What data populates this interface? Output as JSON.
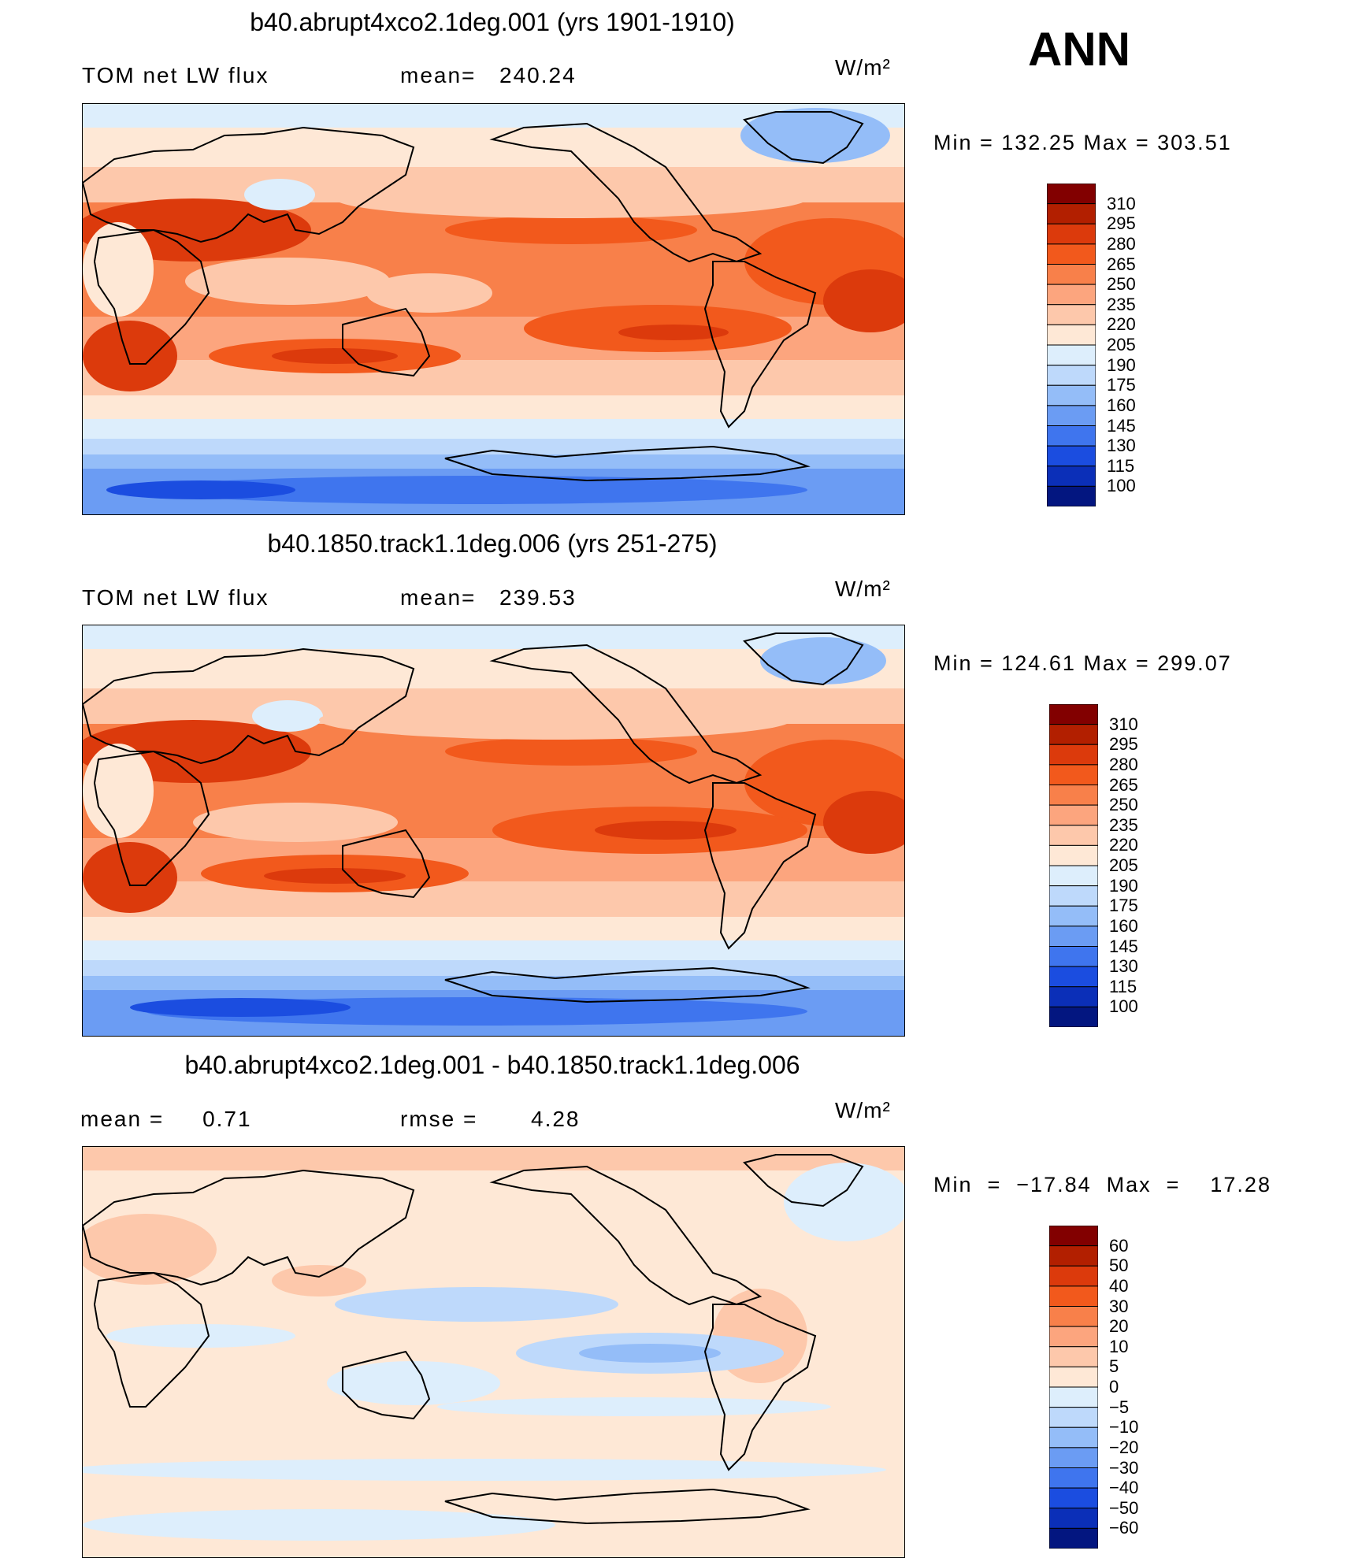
{
  "season": "ANN",
  "units": "W/m²",
  "panels": [
    {
      "title": "b40.abrupt4xco2.1deg.001 (yrs 1901-1910)",
      "left_label": "TOM net LW flux",
      "stat_label": "mean=",
      "stat_value": "240.24",
      "min_max": "Min  =  132.25  Max  =  303.51"
    },
    {
      "title": "b40.1850.track1.1deg.006 (yrs 251-275)",
      "left_label": "TOM net LW flux",
      "stat_label": "mean=",
      "stat_value": "239.53",
      "min_max": "Min  =  124.61  Max  =  299.07"
    },
    {
      "title": "b40.abrupt4xco2.1deg.001 - b40.1850.track1.1deg.006",
      "left_label": "mean =     0.71",
      "stat_label": "rmse =",
      "stat_value": "4.28",
      "min_max": "Min  =  −17.84  Max  =    17.28"
    }
  ],
  "chart_data": [
    {
      "type": "heatmap",
      "title": "b40.abrupt4xco2.1deg.001 (yrs 1901-1910)",
      "variable": "TOM net LW flux",
      "mean": 240.24,
      "min": 132.25,
      "max": 303.51,
      "colorbar_levels": [
        "310",
        "295",
        "280",
        "265",
        "250",
        "235",
        "220",
        "205",
        "190",
        "175",
        "160",
        "145",
        "130",
        "115",
        "100"
      ],
      "colorbar_colors": [
        "#820000",
        "#b21f00",
        "#dc3a0c",
        "#f2591c",
        "#f8804a",
        "#fca57e",
        "#fdc8ab",
        "#fee8d6",
        "#ddeefc",
        "#bed9fb",
        "#94bdf8",
        "#6b9cf3",
        "#3f75ee",
        "#1b4de0",
        "#0b2fb8",
        "#031680"
      ]
    },
    {
      "type": "heatmap",
      "title": "b40.1850.track1.1deg.006 (yrs 251-275)",
      "variable": "TOM net LW flux",
      "mean": 239.53,
      "min": 124.61,
      "max": 299.07,
      "colorbar_levels": [
        "310",
        "295",
        "280",
        "265",
        "250",
        "235",
        "220",
        "205",
        "190",
        "175",
        "160",
        "145",
        "130",
        "115",
        "100"
      ],
      "colorbar_colors": [
        "#820000",
        "#b21f00",
        "#dc3a0c",
        "#f2591c",
        "#f8804a",
        "#fca57e",
        "#fdc8ab",
        "#fee8d6",
        "#ddeefc",
        "#bed9fb",
        "#94bdf8",
        "#6b9cf3",
        "#3f75ee",
        "#1b4de0",
        "#0b2fb8",
        "#031680"
      ]
    },
    {
      "type": "heatmap",
      "title": "b40.abrupt4xco2.1deg.001 - b40.1850.track1.1deg.006",
      "mean": 0.71,
      "rmse": 4.28,
      "min": -17.84,
      "max": 17.28,
      "colorbar_levels": [
        "60",
        "50",
        "40",
        "30",
        "20",
        "10",
        "5",
        "0",
        "−5",
        "−10",
        "−20",
        "−30",
        "−40",
        "−50",
        "−60"
      ],
      "colorbar_colors": [
        "#820000",
        "#b21f00",
        "#dc3a0c",
        "#f2591c",
        "#f8804a",
        "#fca57e",
        "#fdc8ab",
        "#fee8d6",
        "#ddeefc",
        "#bed9fb",
        "#94bdf8",
        "#6b9cf3",
        "#3f75ee",
        "#1b4de0",
        "#0b2fb8",
        "#031680"
      ]
    }
  ]
}
